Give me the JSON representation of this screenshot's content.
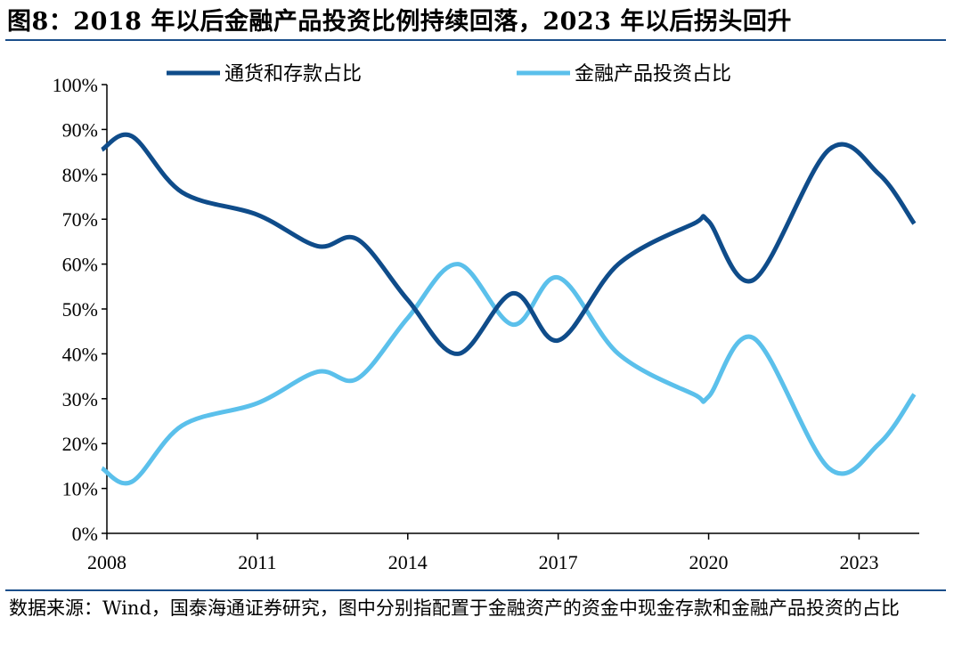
{
  "header": {
    "title": "图8：2018 年以后金融产品投资比例持续回落，2023 年以后拐头回升"
  },
  "footer": {
    "source": "数据来源：Wind，国泰海通证券研究，图中分别指配置于金融资产的资金中现金存款和金融产品投资的占比"
  },
  "colors": {
    "series_dark": "#0f4c8a",
    "series_light": "#5bc0eb",
    "axis": "#000000",
    "rule": "#1a4e8a"
  },
  "chart_data": {
    "type": "line",
    "title": "",
    "xlabel": "",
    "ylabel": "",
    "x": [
      2007.9,
      2008.5,
      2009.5,
      2011,
      2012.2,
      2013,
      2014,
      2015,
      2016.1,
      2017,
      2018.2,
      2019.7,
      2020,
      2020.9,
      2022.4,
      2023.4,
      2024.1
    ],
    "xlim": [
      2008,
      2024.2
    ],
    "xticks": [
      2008,
      2011,
      2014,
      2017,
      2020,
      2023
    ],
    "xtick_labels": [
      "2008",
      "2011",
      "2014",
      "2017",
      "2020",
      "2023"
    ],
    "ylim": [
      0,
      100
    ],
    "yticks": [
      0,
      10,
      20,
      30,
      40,
      50,
      60,
      70,
      80,
      90,
      100
    ],
    "ytick_labels": [
      "0%",
      "10%",
      "20%",
      "30%",
      "40%",
      "50%",
      "60%",
      "70%",
      "80%",
      "90%",
      "100%"
    ],
    "series": [
      {
        "name": "通货和存款占比",
        "values": [
          85.5,
          88.5,
          76,
          71,
          64,
          65.5,
          52,
          40,
          53.5,
          43,
          60,
          69,
          69.5,
          56.5,
          85.5,
          80,
          69
        ]
      },
      {
        "name": "金融产品投资占比",
        "values": [
          14.5,
          11.5,
          24,
          29,
          36,
          34.5,
          48,
          60,
          46.5,
          57,
          40,
          31,
          30.5,
          43.5,
          14.5,
          20,
          31
        ]
      }
    ],
    "legend_position": "top-center"
  }
}
